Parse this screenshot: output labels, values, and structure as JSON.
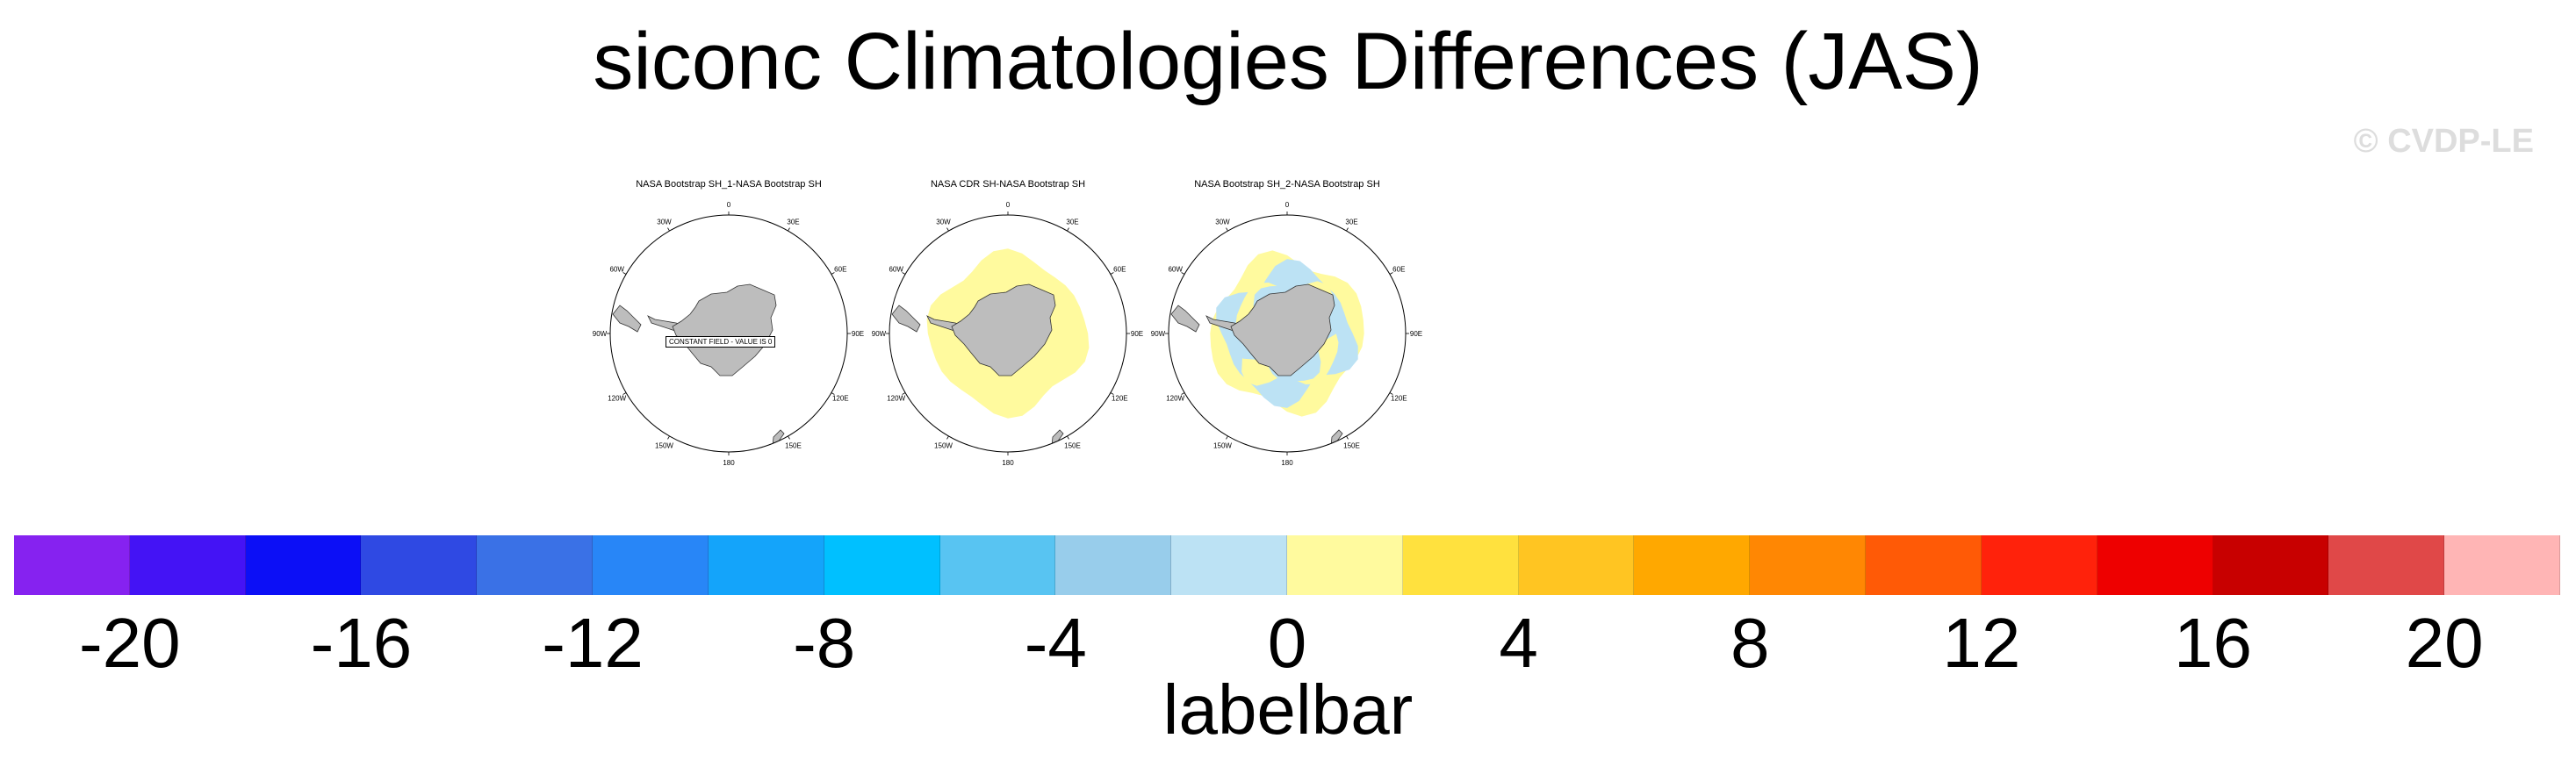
{
  "title": "siconc Climatologies Differences (JAS)",
  "credit": "© CVDP-LE",
  "panels": [
    {
      "title": "NASA Bootstrap SH_1-NASA Bootstrap SH",
      "annotation": "CONSTANT FIELD - VALUE IS 0",
      "pattern": "constant"
    },
    {
      "title": "NASA CDR SH-NASA Bootstrap SH",
      "annotation": "",
      "pattern": "positive"
    },
    {
      "title": "NASA Bootstrap SH_2-NASA Bootstrap SH",
      "annotation": "",
      "pattern": "mixed"
    }
  ],
  "longitude_labels": [
    "0",
    "30E",
    "60E",
    "90E",
    "120E",
    "150E",
    "180",
    "150W",
    "120W",
    "90W",
    "60W",
    "30W"
  ],
  "colorbar": {
    "label": "labelbar",
    "tick_labels": [
      "-20",
      "-16",
      "-12",
      "-8",
      "-4",
      "0",
      "4",
      "8",
      "12",
      "16",
      "20"
    ],
    "colors": [
      "#8622f0",
      "#4413f5",
      "#0c0ff6",
      "#2f49e3",
      "#3a71e6",
      "#2886f7",
      "#14a4fa",
      "#00c0ff",
      "#58c4f2",
      "#98cdeb",
      "#bce2f4",
      "#fffa9e",
      "#ffe13e",
      "#ffc522",
      "#ffa800",
      "#ff8703",
      "#ff5a06",
      "#ff220b",
      "#ee0000",
      "#c80000",
      "#e04848",
      "#ffb5b5"
    ]
  },
  "chart_data": {
    "type": "heatmap",
    "title": "siconc Climatologies Differences (JAS)",
    "colorbar_levels": [
      -22,
      -20,
      -18,
      -16,
      -14,
      -12,
      -10,
      -8,
      -6,
      -4,
      -2,
      0,
      2,
      4,
      6,
      8,
      10,
      12,
      14,
      16,
      18,
      20,
      22
    ],
    "tick_values": [
      -20,
      -16,
      -12,
      -8,
      -4,
      0,
      4,
      8,
      12,
      16,
      20
    ],
    "panels": [
      {
        "title": "NASA Bootstrap SH_1-NASA Bootstrap SH",
        "field": "constant",
        "value": 0
      },
      {
        "title": "NASA CDR SH-NASA Bootstrap SH",
        "field": "ring of small positive differences (0 to 2) around Antarctica"
      },
      {
        "title": "NASA Bootstrap SH_2-NASA Bootstrap SH",
        "field": "mixed small differences (-2 to 2) around Antarctica"
      }
    ]
  }
}
